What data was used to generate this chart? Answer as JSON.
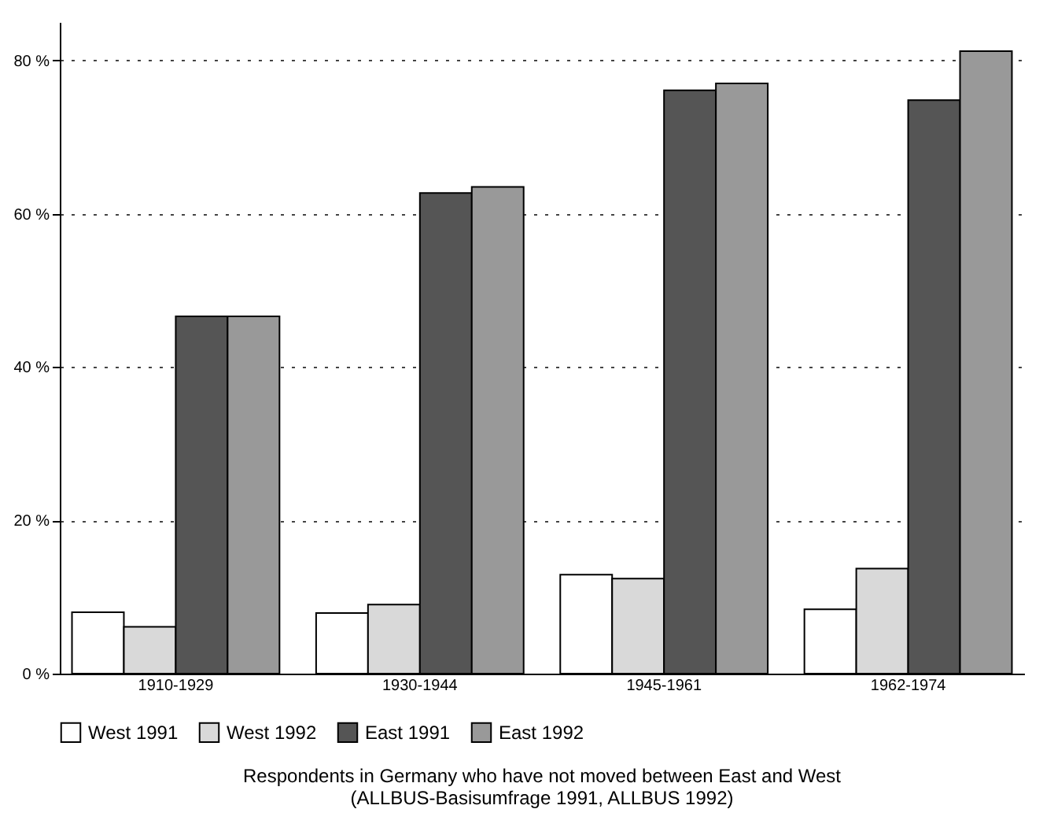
{
  "chart_data": {
    "type": "bar",
    "categories": [
      "1910-1929",
      "1930-1944",
      "1945-1961",
      "1962-1974"
    ],
    "series": [
      {
        "name": "West 1991",
        "color": "#ffffff",
        "values": [
          8.0,
          7.9,
          12.9,
          8.4
        ]
      },
      {
        "name": "West 1992",
        "color": "#d9d9d9",
        "values": [
          6.1,
          9.0,
          12.4,
          13.7
        ]
      },
      {
        "name": "East 1991",
        "color": "#555555",
        "values": [
          46.6,
          62.7,
          76.1,
          74.8
        ]
      },
      {
        "name": "East 1992",
        "color": "#999999",
        "values": [
          46.6,
          63.5,
          77.0,
          81.2
        ]
      }
    ],
    "ylim": [
      0,
      85
    ],
    "yticks": [
      {
        "value": 0,
        "label": "0 %"
      },
      {
        "value": 20,
        "label": "20 %"
      },
      {
        "value": 40,
        "label": "40 %"
      },
      {
        "value": 60,
        "label": "60 %"
      },
      {
        "value": 80,
        "label": "80 %"
      }
    ],
    "grid": "y",
    "legend": "bottom",
    "annotations": [
      "Respondents in Germany who have not moved between East and West",
      "(ALLBUS-Basisumfrage 1991, ALLBUS 1992)"
    ]
  }
}
